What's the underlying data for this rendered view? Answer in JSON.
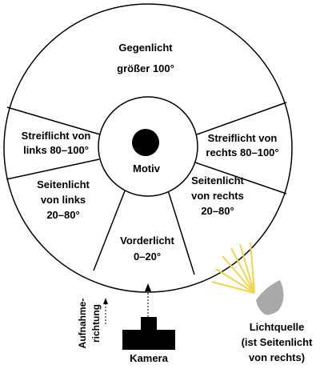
{
  "zones": {
    "gegenlicht": {
      "line1": "Gegenlicht",
      "line2": "größer 100°"
    },
    "streiflicht_links": {
      "line1": "Streiflicht von",
      "line2": "links 80–100°"
    },
    "streiflicht_rechts": {
      "line1": "Streiflicht von",
      "line2": "rechts 80–100°"
    },
    "seitenlicht_links": {
      "line1": "Seitenlicht",
      "line2": "von links",
      "line3": "20–80°"
    },
    "seitenlicht_rechts": {
      "line1": "Seitenlicht",
      "line2": "von rechts",
      "line3": "20–80°"
    },
    "vorderlicht": {
      "line1": "Vorderlicht",
      "line2": "0–20°"
    }
  },
  "motiv": {
    "label": "Motiv"
  },
  "camera": {
    "label": "Kamera"
  },
  "direction": {
    "line1": "Aufnahme-",
    "line2": "richtung"
  },
  "lightsource": {
    "line1": "Lichtquelle",
    "line2": "(ist Seitenlicht",
    "line3": "von rechts)"
  },
  "colors": {
    "stroke": "#000000",
    "light_rays": "#f2d54b",
    "lamp": "#a9a9a9"
  }
}
